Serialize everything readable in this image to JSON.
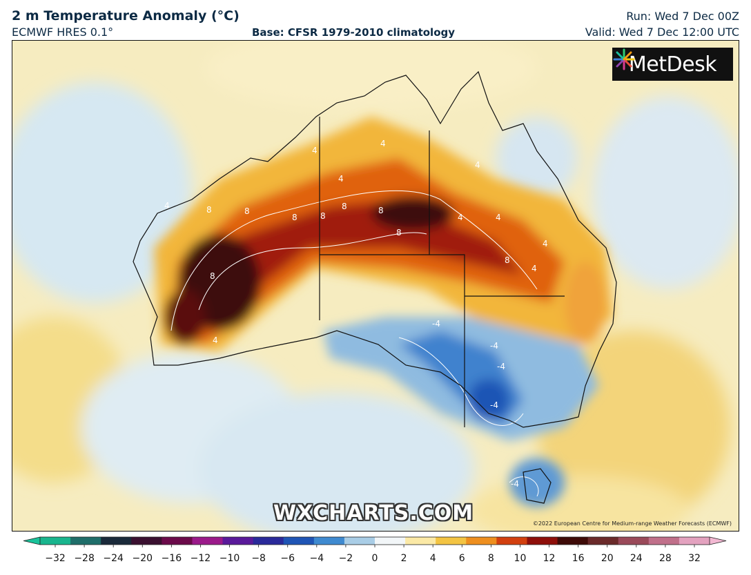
{
  "header": {
    "title": "2 m Temperature Anomaly (°C)",
    "model": "ECMWF HRES 0.1°",
    "base": "Base: CFSR 1979-2010 climatology",
    "run": "Run: Wed 7 Dec 00Z",
    "valid": "Valid: Wed 7 Dec 12:00 UTC"
  },
  "logo": {
    "text": "MetDesk",
    "icon": "metdesk-star-icon"
  },
  "watermark": "WXCHARTS.COM",
  "credit": "©2022 European Centre for Medium-range Weather Forecasts (ECMWF)",
  "contour_labels": [
    "8",
    "8",
    "8",
    "8",
    "8",
    "8",
    "8",
    "8",
    "8",
    "4",
    "4",
    "4",
    "4",
    "4",
    "4",
    "4",
    "4",
    "4",
    "4",
    "-4",
    "-4",
    "-4",
    "-4",
    "-4"
  ],
  "colorbar": {
    "ticks": [
      "−32",
      "−28",
      "−24",
      "−20",
      "−16",
      "−12",
      "−10",
      "−8",
      "−6",
      "−4",
      "−2",
      "0",
      "2",
      "4",
      "6",
      "8",
      "10",
      "12",
      "16",
      "20",
      "24",
      "28",
      "32"
    ],
    "colors": [
      "#19b58e",
      "#1f6e6a",
      "#1a2a3a",
      "#3a1030",
      "#6b0a4a",
      "#9b1a8a",
      "#5a1a9a",
      "#2a2a9a",
      "#1f55b5",
      "#3f8ad0",
      "#a9cde6",
      "#f2f6f8",
      "#fbe9a6",
      "#f3c443",
      "#ee8f1f",
      "#d2400f",
      "#8e0f0a",
      "#3e0b08",
      "#6a2a2a",
      "#9a4a5a",
      "#c0708a",
      "#e3a2bf"
    ]
  },
  "colors": {
    "hot": "#8b0d0a",
    "cold": "#1f5fb5",
    "land_border": "#111111"
  }
}
